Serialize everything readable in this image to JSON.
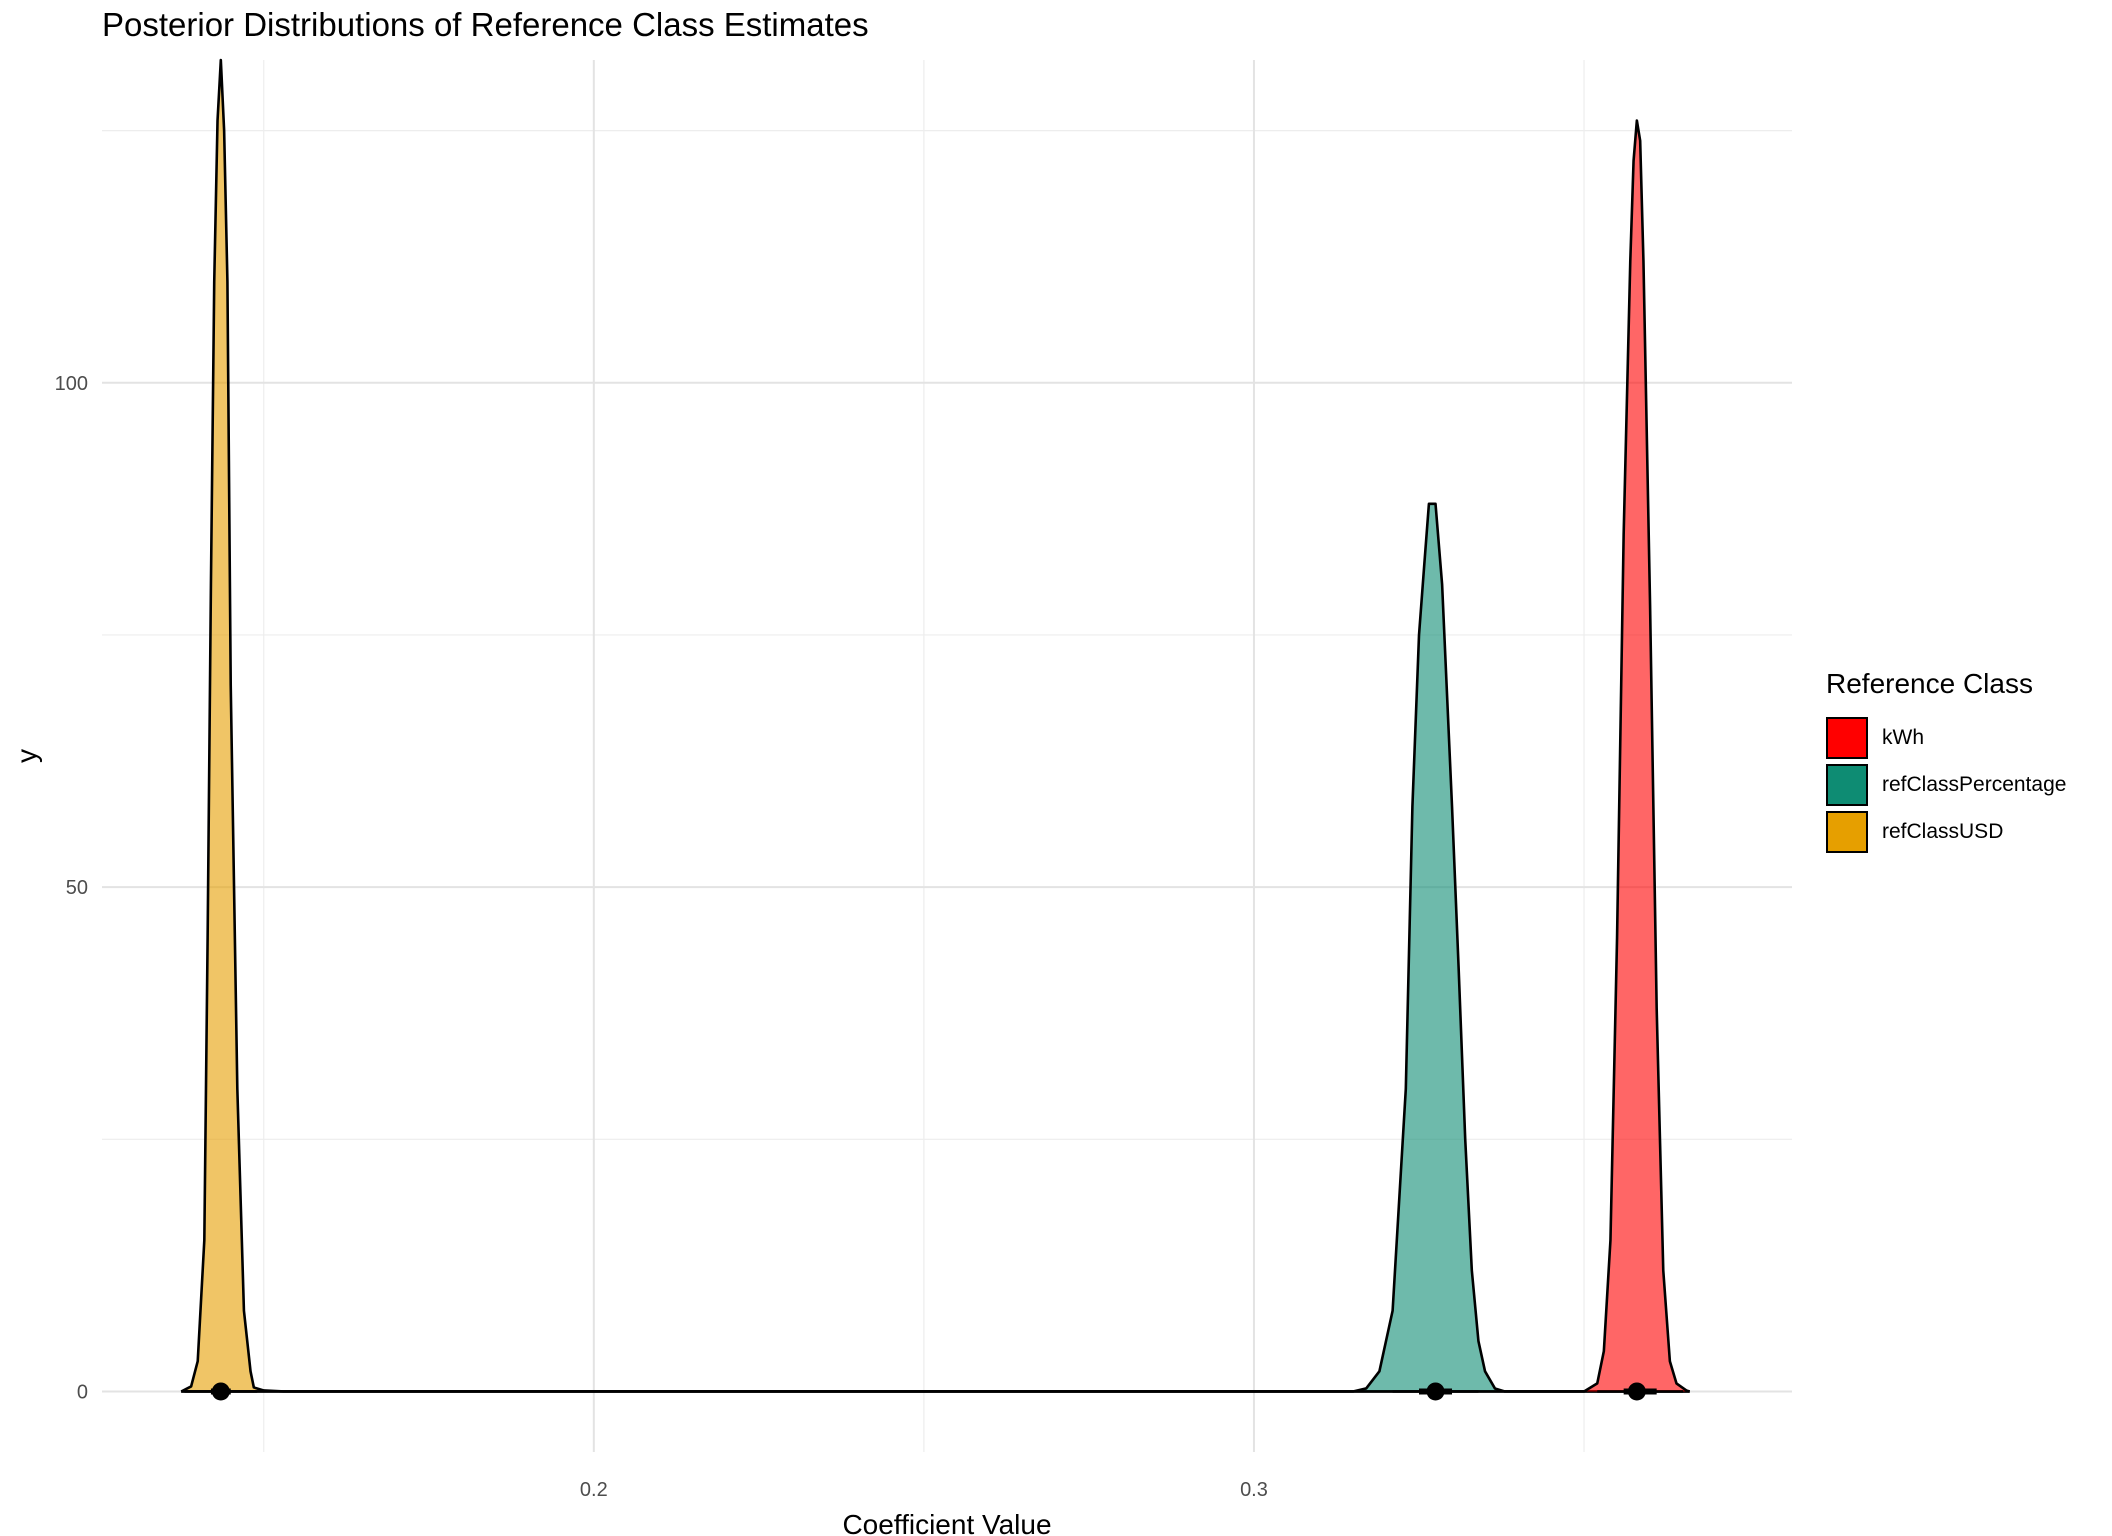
{
  "chart_data": {
    "type": "area",
    "title": "Posterior Distributions of Reference Class Estimates",
    "xlabel": "Coefficient Value",
    "ylabel": "y",
    "xlim": [
      0.1255,
      0.3815
    ],
    "ylim": [
      -6,
      132
    ],
    "x_ticks": [
      0.2,
      0.3
    ],
    "x_tick_labels": [
      "0.2",
      "0.3"
    ],
    "y_ticks": [
      0,
      50,
      100
    ],
    "y_tick_labels": [
      "0",
      "50",
      "100"
    ],
    "grid": true,
    "legend_title": "Reference Class",
    "legend_position": "right",
    "series": [
      {
        "name": "kWh",
        "color": "#FF0000",
        "fill_opacity": 0.6,
        "points": [
          [
            0.35,
            0
          ],
          [
            0.352,
            0.8
          ],
          [
            0.353,
            4
          ],
          [
            0.354,
            15
          ],
          [
            0.355,
            45
          ],
          [
            0.356,
            85
          ],
          [
            0.357,
            112
          ],
          [
            0.3575,
            122
          ],
          [
            0.358,
            126
          ],
          [
            0.3585,
            124
          ],
          [
            0.359,
            112
          ],
          [
            0.36,
            78
          ],
          [
            0.361,
            38
          ],
          [
            0.362,
            12
          ],
          [
            0.363,
            3
          ],
          [
            0.364,
            0.8
          ],
          [
            0.3655,
            0.1
          ],
          [
            0.366,
            0
          ]
        ],
        "point_estimate": 0.358,
        "interval": [
          0.356,
          0.361
        ]
      },
      {
        "name": "refClassPercentage",
        "color": "#0E8C73",
        "fill_opacity": 0.6,
        "points": [
          [
            0.315,
            0
          ],
          [
            0.317,
            0.3
          ],
          [
            0.319,
            2
          ],
          [
            0.321,
            8
          ],
          [
            0.323,
            30
          ],
          [
            0.324,
            58
          ],
          [
            0.325,
            75
          ],
          [
            0.3258,
            82
          ],
          [
            0.3265,
            88
          ],
          [
            0.3275,
            88
          ],
          [
            0.3285,
            80
          ],
          [
            0.33,
            58
          ],
          [
            0.331,
            42
          ],
          [
            0.332,
            25
          ],
          [
            0.333,
            12
          ],
          [
            0.334,
            5
          ],
          [
            0.335,
            2
          ],
          [
            0.3365,
            0.3
          ],
          [
            0.338,
            0
          ]
        ],
        "point_estimate": 0.3275,
        "interval": [
          0.325,
          0.33
        ]
      },
      {
        "name": "refClassUSD",
        "color": "#E69F00",
        "fill_opacity": 0.6,
        "points": [
          [
            0.1375,
            0
          ],
          [
            0.139,
            0.5
          ],
          [
            0.14,
            3
          ],
          [
            0.141,
            15
          ],
          [
            0.1415,
            45
          ],
          [
            0.142,
            80
          ],
          [
            0.1425,
            110
          ],
          [
            0.143,
            126
          ],
          [
            0.1435,
            132
          ],
          [
            0.144,
            125
          ],
          [
            0.1445,
            110
          ],
          [
            0.145,
            70
          ],
          [
            0.146,
            30
          ],
          [
            0.147,
            8
          ],
          [
            0.148,
            2
          ],
          [
            0.1485,
            0.4
          ],
          [
            0.15,
            0.1
          ],
          [
            0.153,
            0
          ]
        ],
        "point_estimate": 0.1435,
        "interval": [
          0.142,
          0.145
        ]
      }
    ]
  }
}
